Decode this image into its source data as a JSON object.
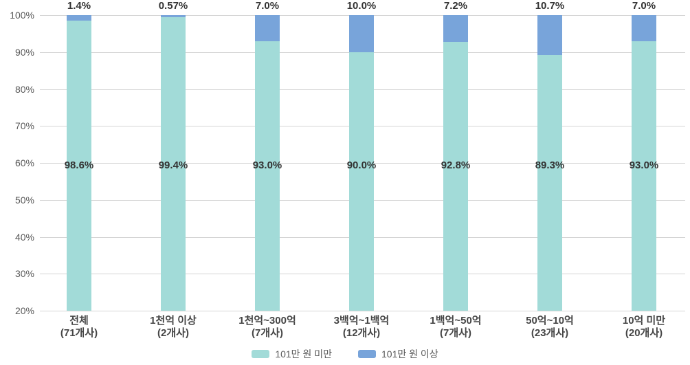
{
  "chart_data": {
    "type": "bar",
    "stacked": true,
    "percent_axis": true,
    "title": "",
    "xlabel": "",
    "ylabel": "",
    "categories": [
      "전체",
      "1천억 이상",
      "1천억~300억",
      "3백억~1백억",
      "1백억~50억",
      "50억~10억",
      "10억 미만"
    ],
    "category_counts": [
      "(71개사)",
      "(2개사)",
      "(7개사)",
      "(12개사)",
      "(7개사)",
      "(23개사)",
      "(20개사)"
    ],
    "series": [
      {
        "name": "101만 원 미만",
        "color": "#a2dbd8",
        "values": [
          98.6,
          99.4,
          93.0,
          90.0,
          92.8,
          89.3,
          93.0
        ],
        "data_labels": [
          "98.6%",
          "99.4%",
          "93.0%",
          "90.0%",
          "92.8%",
          "89.3%",
          "93.0%"
        ],
        "label_placement": "inside"
      },
      {
        "name": "101만 원 이상",
        "color": "#78a4da",
        "values": [
          1.4,
          0.57,
          7.0,
          10.0,
          7.2,
          10.7,
          7.0
        ],
        "data_labels": [
          "1.4%",
          "0.57%",
          "7.0%",
          "10.0%",
          "7.2%",
          "10.7%",
          "7.0%"
        ],
        "label_placement": "above"
      }
    ],
    "ylim": [
      20,
      100
    ],
    "y_ticks": [
      "20%",
      "30%",
      "40%",
      "50%",
      "60%",
      "70%",
      "80%",
      "90%",
      "100%"
    ],
    "grid": true,
    "legend_position": "bottom"
  },
  "colors": {
    "grid_line": "#d4d4d4",
    "tick_text": "#595959",
    "data_label_text": "#333333",
    "category_text": "#454545",
    "legend_text": "#595959",
    "background": "#ffffff"
  }
}
